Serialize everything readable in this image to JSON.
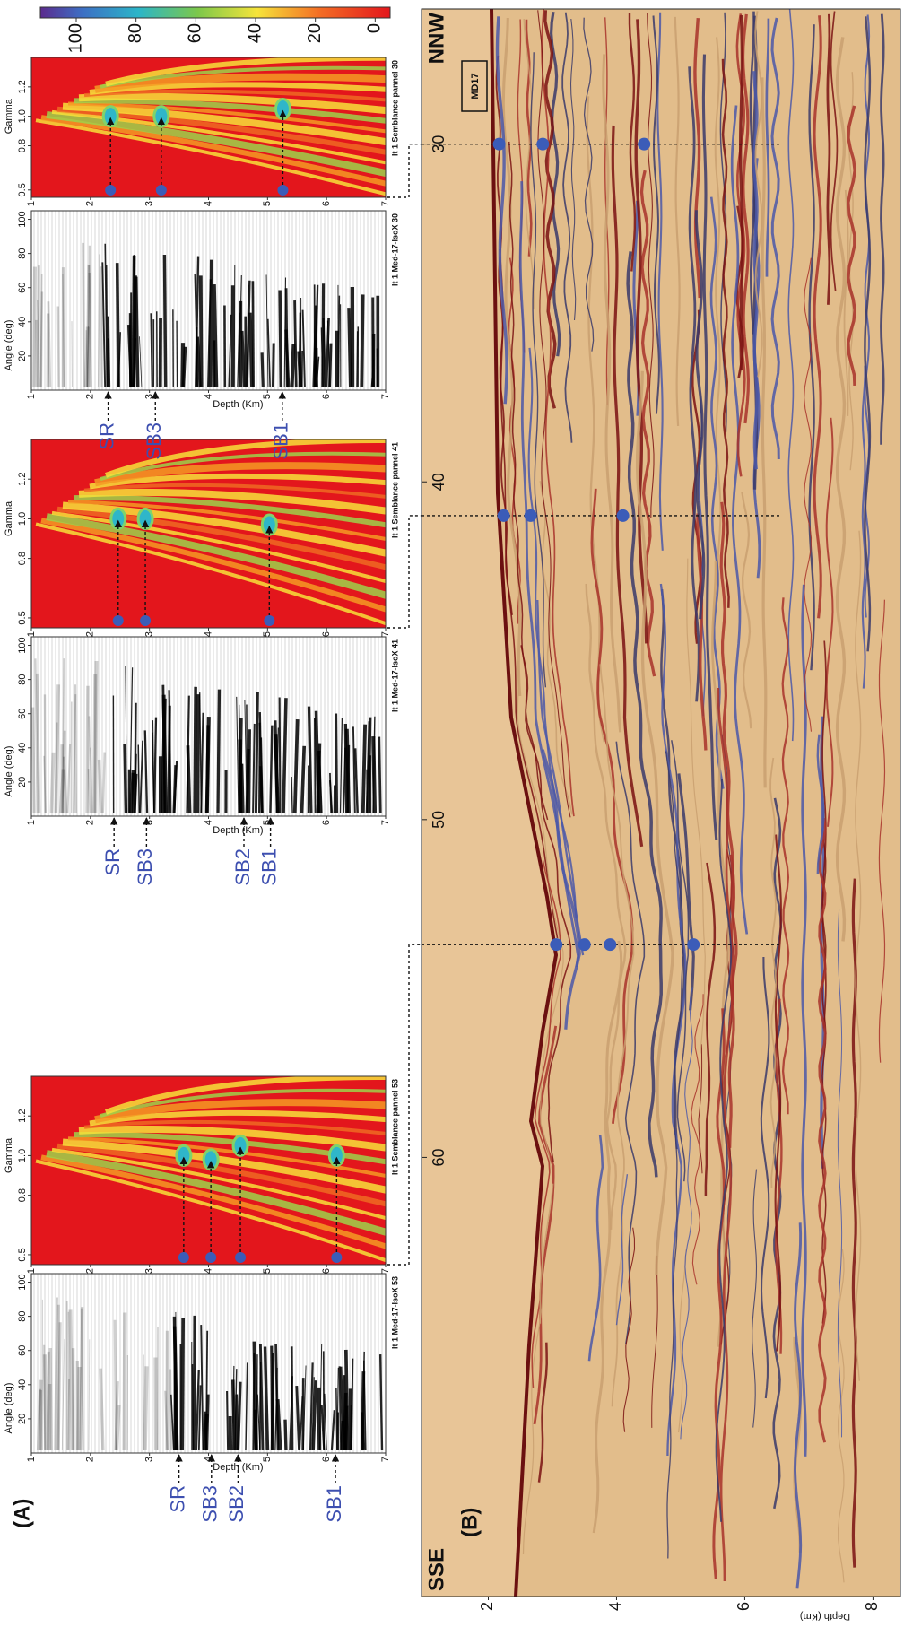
{
  "panel_a": {
    "label": "(A)",
    "depth_label": "Depth (Km)",
    "depth_lim": [
      1,
      7
    ],
    "depth_ticks": [
      1,
      2,
      3,
      4,
      5,
      6,
      7
    ],
    "angle_label": "Angle (deg)",
    "angle_lim": [
      0,
      105
    ],
    "angle_ticks": [
      20,
      40,
      60,
      80,
      100
    ],
    "gamma_label": "Gamma",
    "gamma_lim": [
      0.45,
      1.4
    ],
    "gamma_ticks": [
      0.5,
      0.8,
      {
        "value": 1,
        "label": "1.0"
      },
      1.2
    ],
    "colorbar": {
      "lim": [
        -5,
        112
      ],
      "ticks": [
        0,
        20,
        40,
        60,
        80,
        100
      ]
    },
    "gathers": [
      {
        "title": "It 1 Med-17-IsoX 53",
        "semblance_title": "It 1 Semblance pannel 53",
        "horizons": [
          {
            "name": "SR",
            "depth": 3.5
          },
          {
            "name": "SB3",
            "depth": 4.05
          },
          {
            "name": "SB2",
            "depth": 4.5
          },
          {
            "name": "SB1",
            "depth": 6.15
          }
        ],
        "picks": [
          {
            "depth": 3.58,
            "gamma": 1.0
          },
          {
            "depth": 4.04,
            "gamma": 0.98
          },
          {
            "depth": 4.54,
            "gamma": 1.05
          },
          {
            "depth": 6.17,
            "gamma": 1.0
          }
        ]
      },
      {
        "title": "It 1 Med-17-IsoX 41",
        "semblance_title": "It 1 Semblance pannel 41",
        "horizons": [
          {
            "name": "SR",
            "depth": 2.4
          },
          {
            "name": "SB3",
            "depth": 2.95
          },
          {
            "name": "SB2",
            "depth": 4.6
          },
          {
            "name": "SB1",
            "depth": 5.05
          }
        ],
        "picks": [
          {
            "depth": 2.47,
            "gamma": 1.0
          },
          {
            "depth": 2.93,
            "gamma": 1.0
          },
          {
            "depth": 5.03,
            "gamma": 0.97
          }
        ]
      },
      {
        "title": "It 1 Med-17-IsoX 30",
        "semblance_title": "It 1 Semblance pannel 30",
        "horizons": [
          {
            "name": "SR",
            "depth": 2.3
          },
          {
            "name": "SB3",
            "depth": 3.1
          },
          {
            "name": "SB1",
            "depth": 5.25
          }
        ],
        "picks": [
          {
            "depth": 2.34,
            "gamma": 1.0
          },
          {
            "depth": 3.2,
            "gamma": 1.0
          },
          {
            "depth": 5.26,
            "gamma": 1.05
          }
        ]
      }
    ]
  },
  "panel_b": {
    "label": "(B)",
    "left_label": "SSE",
    "right_label": "NNW",
    "well_label": "MD17",
    "distance_lim": [
      73,
      26
    ],
    "distance_ticks": [
      60,
      50,
      40,
      30
    ],
    "depth_label": "Depth (Km)",
    "depth_lim": [
      1,
      8.4
    ],
    "depth_ticks": [
      2,
      4,
      6,
      8
    ],
    "profiles": [
      {
        "distance": 53.7,
        "depths": [
          3.06,
          3.5,
          3.9,
          5.2
        ]
      },
      {
        "distance": 41,
        "depths": [
          2.24,
          2.66,
          4.1
        ]
      },
      {
        "distance": 30,
        "depths": [
          2.17,
          2.85,
          4.43
        ]
      }
    ]
  }
}
